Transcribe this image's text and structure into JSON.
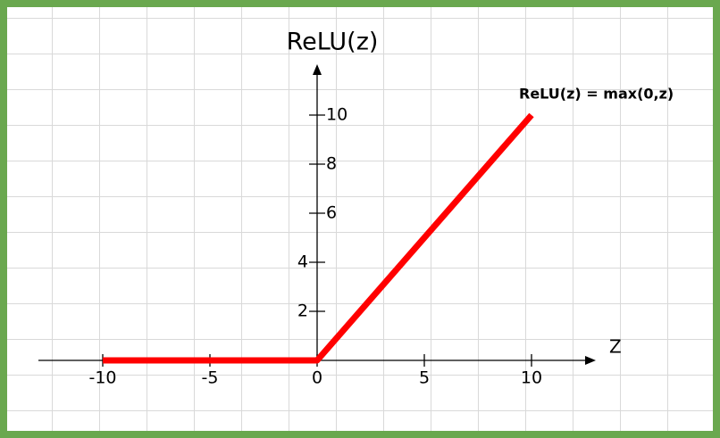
{
  "chart_data": {
    "type": "line",
    "y_axis_label": "ReLU(z)",
    "x_axis_label": "Z",
    "annotation": "ReLU(z) = max(0,z)",
    "x": [
      -10,
      0,
      10
    ],
    "series": [
      {
        "name": "ReLU(z) = max(0,z)",
        "color": "#ff0000",
        "values": [
          0,
          0,
          10
        ]
      }
    ],
    "xlim": [
      -13,
      13
    ],
    "ylim": [
      0,
      12
    ],
    "xticks": [
      -10,
      -5,
      0,
      5,
      10
    ],
    "yticks": [
      2,
      4,
      6,
      8,
      10
    ],
    "grid": true
  }
}
